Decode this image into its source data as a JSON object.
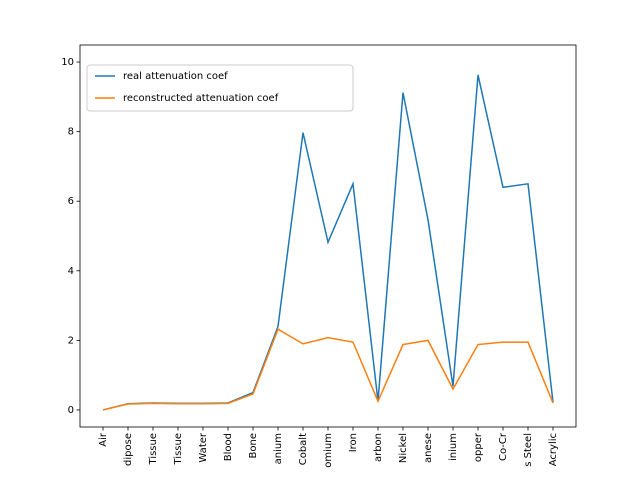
{
  "chart_data": {
    "type": "line",
    "categories": [
      "Air",
      "dipose",
      "Tissue",
      "Tissue",
      "Water",
      "Blood",
      "Bone",
      "anium",
      "Cobalt",
      "omium",
      "Iron",
      "arbon",
      "Nickel",
      "anese",
      "inium",
      "opper",
      "Co-Cr",
      "s Steel",
      "Acrylic"
    ],
    "series": [
      {
        "name": "real attenuation coef",
        "color": "#1f77b4",
        "values": [
          0,
          0.18,
          0.2,
          0.19,
          0.19,
          0.2,
          0.5,
          2.4,
          7.97,
          4.82,
          6.5,
          0.25,
          9.12,
          5.47,
          0.68,
          9.63,
          6.4,
          6.5,
          0.22
        ]
      },
      {
        "name": "reconstructed attenuation coef",
        "color": "#ff7f0e",
        "values": [
          0,
          0.17,
          0.19,
          0.18,
          0.18,
          0.19,
          0.46,
          2.32,
          1.9,
          2.08,
          1.95,
          0.25,
          1.88,
          2.0,
          0.6,
          1.88,
          1.95,
          1.95,
          0.2
        ]
      }
    ],
    "ylim": [
      -0.49,
      10.49
    ],
    "yticks": [
      0,
      2,
      4,
      6,
      8,
      10
    ],
    "legend": "upper left"
  }
}
